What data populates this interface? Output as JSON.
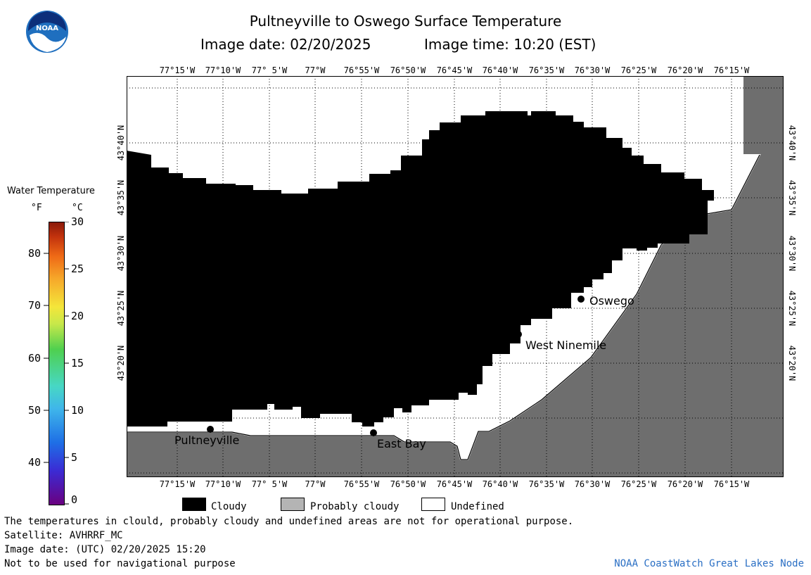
{
  "header": {
    "title": "Pultneyville to Oswego Surface Temperature",
    "subtitle_date": "Image date: 02/20/2025",
    "subtitle_time": "Image time: 10:20 (EST)",
    "logo_text": "NOAA"
  },
  "map": {
    "lon_labels": [
      "77°15'W",
      "77°10'W",
      "77° 5'W",
      "77°W",
      "76°55'W",
      "76°50'W",
      "76°45'W",
      "76°40'W",
      "76°35'W",
      "76°30'W",
      "76°25'W",
      "76°20'W",
      "76°15'W"
    ],
    "lat_labels": [
      "43°40'N",
      "43°35'N",
      "43°30'N",
      "43°25'N",
      "43°20'N"
    ],
    "cities": [
      {
        "name": "Oswego"
      },
      {
        "name": "West Ninemile"
      },
      {
        "name": "Pultneyville"
      },
      {
        "name": "East Bay"
      }
    ],
    "colors": {
      "cloudy": "#000000",
      "land": "#6e6e6e",
      "undefined": "#ffffff"
    }
  },
  "colorbar": {
    "title": "Water Temperature",
    "unit_f": "°F",
    "unit_c": "°C",
    "f_ticks": [
      "80",
      "70",
      "60",
      "50",
      "40"
    ],
    "c_ticks": [
      "30",
      "25",
      "20",
      "15",
      "10",
      "5",
      "0"
    ]
  },
  "legend": {
    "cloudy": "Cloudy",
    "probably_cloudy": "Probably cloudy",
    "undefined": "Undefined",
    "probably_cloudy_color": "#b4b4b4"
  },
  "footer": {
    "line1": "The temperatures in clould, probably cloudy and undefined areas are not for operational purpose.",
    "line2": "Satellite: AVHRRF_MC",
    "line3": "Image date: (UTC) 02/20/2025  15:20",
    "line4": "Not to be used for navigational purpose",
    "credit": "NOAA CoastWatch Great Lakes Node"
  }
}
